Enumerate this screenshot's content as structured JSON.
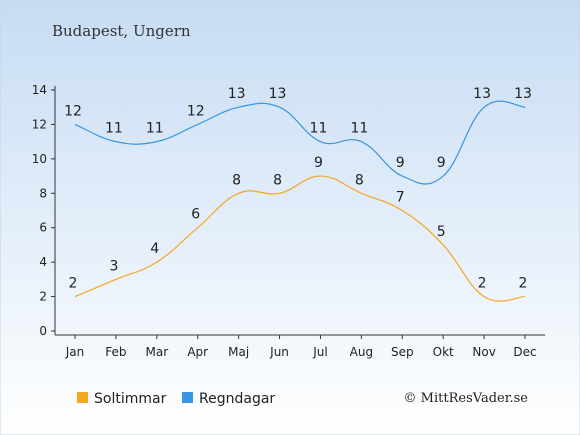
{
  "chart_data": {
    "type": "line",
    "title": "Budapest, Ungern",
    "categories": [
      "Jan",
      "Feb",
      "Mar",
      "Apr",
      "Maj",
      "Jun",
      "Jul",
      "Aug",
      "Sep",
      "Okt",
      "Nov",
      "Dec"
    ],
    "ylim": [
      0,
      14
    ],
    "yticks": [
      0,
      2,
      4,
      6,
      8,
      10,
      12,
      14
    ],
    "grid": false,
    "legend_position": "bottom-left",
    "series": [
      {
        "name": "Soltimmar",
        "color": "#f5a623",
        "values": [
          2,
          3,
          4,
          6,
          8,
          8,
          9,
          8,
          7,
          5,
          2,
          2
        ]
      },
      {
        "name": "Regndagar",
        "color": "#3a96e0",
        "values": [
          12,
          11,
          11,
          12,
          13,
          13,
          11,
          11,
          9,
          9,
          13,
          13
        ]
      }
    ],
    "credit": "© MittResVader.se"
  }
}
